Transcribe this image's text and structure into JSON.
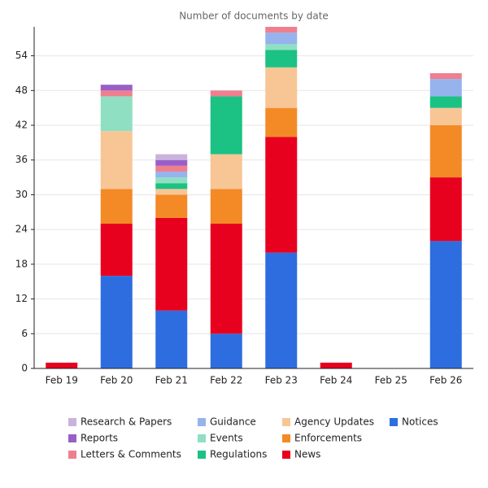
{
  "chart_data": {
    "type": "stacked-bar",
    "title": "Number of documents by date",
    "categories": [
      "Feb 19",
      "Feb 20",
      "Feb 21",
      "Feb 22",
      "Feb 23",
      "Feb 24",
      "Feb 25",
      "Feb 26"
    ],
    "series": [
      {
        "name": "Notices",
        "color": "#2e6de0",
        "values": [
          0,
          16,
          10,
          6,
          20,
          0,
          0,
          22
        ]
      },
      {
        "name": "News",
        "color": "#e8001f",
        "values": [
          1,
          9,
          16,
          19,
          20,
          1,
          0,
          11
        ]
      },
      {
        "name": "Enforcements",
        "color": "#f38a26",
        "values": [
          0,
          6,
          4,
          6,
          5,
          0,
          0,
          9
        ]
      },
      {
        "name": "Agency Updates",
        "color": "#f8c595",
        "values": [
          0,
          10,
          1,
          6,
          7,
          0,
          0,
          3
        ]
      },
      {
        "name": "Regulations",
        "color": "#1cc283",
        "values": [
          0,
          0,
          1,
          10,
          3,
          0,
          0,
          2
        ]
      },
      {
        "name": "Events",
        "color": "#8fe0c3",
        "values": [
          0,
          6,
          1,
          0,
          1,
          0,
          0,
          0
        ]
      },
      {
        "name": "Guidance",
        "color": "#96b3ee",
        "values": [
          0,
          0,
          1,
          0,
          2,
          0,
          0,
          3
        ]
      },
      {
        "name": "Letters & Comments",
        "color": "#ef7f8f",
        "values": [
          0,
          1,
          1,
          1,
          1,
          0,
          0,
          1
        ]
      },
      {
        "name": "Reports",
        "color": "#9a5fc6",
        "values": [
          0,
          1,
          1,
          0,
          0,
          0,
          0,
          0
        ]
      },
      {
        "name": "Research & Papers",
        "color": "#c9b3dd",
        "values": [
          0,
          0,
          1,
          0,
          0,
          0,
          0,
          0
        ]
      }
    ],
    "ylim": [
      0,
      59
    ],
    "yticks": [
      0,
      6,
      12,
      18,
      24,
      30,
      36,
      42,
      48,
      54
    ],
    "grid": true
  }
}
